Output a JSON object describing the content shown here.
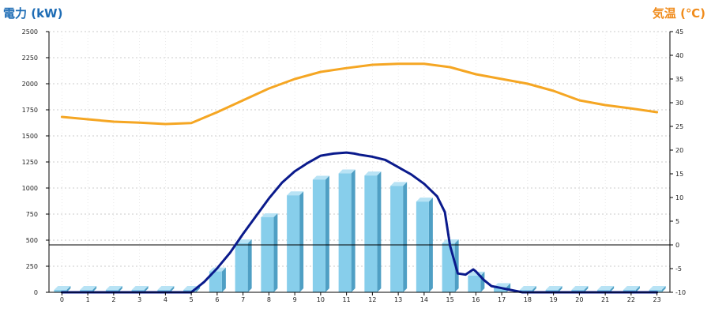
{
  "chart_data": {
    "type": "bar+line",
    "left_axis_title": "電力 (kW)",
    "right_axis_title": "気温 (℃)",
    "categories": [
      "0",
      "1",
      "2",
      "3",
      "4",
      "5",
      "6",
      "7",
      "8",
      "9",
      "10",
      "11",
      "12",
      "13",
      "14",
      "15",
      "16",
      "17",
      "18",
      "19",
      "20",
      "21",
      "22",
      "23"
    ],
    "left_ylim": [
      0,
      2500
    ],
    "left_ticks": [
      0,
      250,
      500,
      750,
      1000,
      1250,
      1500,
      1750,
      2000,
      2250,
      2500
    ],
    "right_ylim": [
      -10,
      45
    ],
    "right_ticks": [
      -10,
      -5,
      0,
      5,
      10,
      15,
      20,
      25,
      30,
      35,
      40,
      45
    ],
    "grid": true,
    "colors": {
      "bar_front": "#87ceeb",
      "bar_side": "#4f9fc4",
      "bar_top": "#b8e3f5",
      "power_line": "#0a1a8c",
      "temp_line": "#f5a623",
      "zero_line": "#000000",
      "grid": "#bbbbbb",
      "left_title": "#1f6db5",
      "right_title": "#f08c1c"
    },
    "series": [
      {
        "type": "bar",
        "axis": "left",
        "values": [
          0,
          0,
          0,
          0,
          0,
          0,
          200,
          470,
          720,
          930,
          1080,
          1140,
          1120,
          1020,
          870,
          470,
          160,
          50,
          0,
          0,
          0,
          0,
          0,
          0
        ]
      },
      {
        "type": "line",
        "axis": "left",
        "x": [
          0,
          1,
          2,
          3,
          4,
          5,
          5.5,
          6,
          6.5,
          7,
          7.5,
          8,
          8.5,
          9,
          9.5,
          10,
          10.5,
          11,
          11.3,
          11.5,
          12,
          12.5,
          13,
          13.5,
          14,
          14.5,
          14.8,
          15,
          15.3,
          15.6,
          15.9,
          16,
          16.3,
          16.6,
          17,
          17.4,
          17.8,
          18,
          19,
          20,
          21,
          22,
          23
        ],
        "values": [
          0,
          0,
          0,
          0,
          0,
          0,
          100,
          230,
          380,
          560,
          730,
          900,
          1050,
          1160,
          1240,
          1310,
          1330,
          1340,
          1330,
          1320,
          1300,
          1270,
          1200,
          1130,
          1040,
          920,
          770,
          450,
          180,
          170,
          220,
          200,
          120,
          60,
          40,
          20,
          0,
          0,
          0,
          0,
          0,
          0,
          0
        ]
      },
      {
        "type": "line",
        "axis": "right",
        "x": [
          0,
          1,
          2,
          3,
          4,
          5,
          6,
          7,
          8,
          9,
          10,
          11,
          12,
          13,
          14,
          15,
          16,
          17,
          18,
          19,
          20,
          21,
          22,
          23
        ],
        "values": [
          27,
          26.5,
          26,
          25.8,
          25.5,
          25.7,
          28,
          30.5,
          33,
          35,
          36.5,
          37.3,
          38,
          38.2,
          38.2,
          37.5,
          36,
          35,
          34,
          32.5,
          30.5,
          29.5,
          28.8,
          28
        ]
      }
    ]
  }
}
